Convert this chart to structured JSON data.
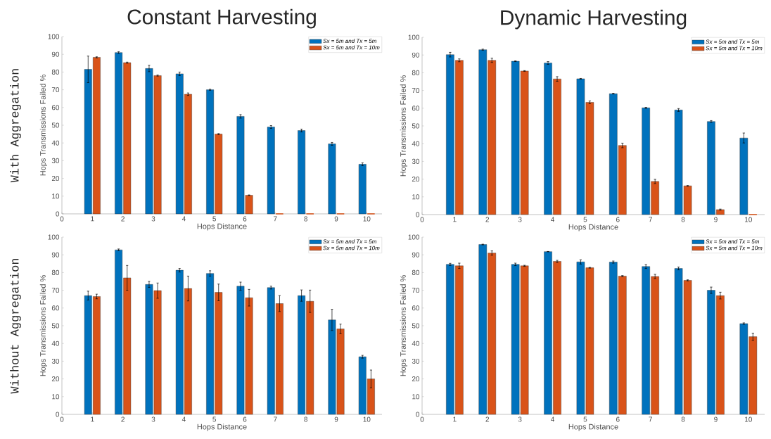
{
  "chart_data": [
    {
      "type": "bar",
      "title": "Constant Harvesting",
      "xlabel": "Hops Distance",
      "ylabel": "Hops Transmissions Failed %",
      "annotations": [
        "With Aggregation"
      ],
      "x": [
        1,
        2,
        3,
        4,
        5,
        6,
        7,
        8,
        9,
        10
      ],
      "xlim": [
        0,
        10.5
      ],
      "ylim": [
        0,
        100
      ],
      "xticks": [
        0,
        1,
        2,
        3,
        4,
        5,
        6,
        7,
        8,
        9,
        10
      ],
      "yticks": [
        0,
        10,
        20,
        30,
        40,
        50,
        60,
        70,
        80,
        90,
        100
      ],
      "legend": "top right",
      "series": [
        {
          "name": "Sx = 5m and Tx = 5m",
          "color": "#0072bd",
          "values": [
            81.5,
            91,
            82,
            79,
            70,
            55,
            49,
            47,
            39.5,
            28
          ],
          "errors": [
            7.5,
            0.5,
            1.8,
            1,
            0.3,
            1,
            0.8,
            0.8,
            0.8,
            0.8
          ]
        },
        {
          "name": "Sx = 5m and Tx = 10m",
          "color": "#d95319",
          "values": [
            88.3,
            85.3,
            78,
            67.5,
            45,
            10.5,
            0,
            0,
            0,
            0
          ],
          "errors": [
            0.3,
            0.3,
            0.3,
            0.7,
            0.3,
            0.2,
            null,
            null,
            null,
            null
          ]
        }
      ]
    },
    {
      "type": "bar",
      "title": "Dynamic Harvesting",
      "xlabel": "Hops Distance",
      "ylabel": "Hops Transmissions Failed %",
      "x": [
        1,
        2,
        3,
        4,
        5,
        6,
        7,
        8,
        9,
        10
      ],
      "xlim": [
        0,
        10.5
      ],
      "ylim": [
        0,
        100
      ],
      "xticks": [
        0,
        1,
        2,
        3,
        4,
        5,
        6,
        7,
        8,
        9,
        10
      ],
      "yticks": [
        0,
        10,
        20,
        30,
        40,
        50,
        60,
        70,
        80,
        90,
        100
      ],
      "legend": "top right",
      "series": [
        {
          "name": "Sx = 5m and Tx = 5m",
          "color": "#0072bd",
          "values": [
            90.2,
            93,
            86.5,
            85.5,
            76.6,
            68.2,
            60.2,
            59,
            52.5,
            43.2
          ],
          "errors": [
            1.3,
            0.3,
            0.2,
            0.8,
            0.2,
            0.2,
            0.3,
            0.8,
            0.5,
            2.8
          ]
        },
        {
          "name": "Sx = 5m and Tx = 10m",
          "color": "#d95319",
          "values": [
            87,
            87,
            81,
            76.5,
            63.3,
            39,
            18.7,
            16.2,
            2.8,
            0
          ],
          "errors": [
            0.8,
            1.2,
            0.2,
            1.3,
            0.8,
            1.3,
            1.2,
            0.2,
            0.3,
            null
          ]
        }
      ]
    },
    {
      "type": "bar",
      "xlabel": "Hops Distance",
      "ylabel": "Hops Transmissions Failed %",
      "annotations": [
        "Without Aggregation"
      ],
      "x": [
        1,
        2,
        3,
        4,
        5,
        6,
        7,
        8,
        9,
        10
      ],
      "xlim": [
        0,
        10.5
      ],
      "ylim": [
        0,
        100
      ],
      "xticks": [
        0,
        1,
        2,
        3,
        4,
        5,
        6,
        7,
        8,
        9,
        10
      ],
      "yticks": [
        0,
        10,
        20,
        30,
        40,
        50,
        60,
        70,
        80,
        90,
        100
      ],
      "legend": "top right",
      "series": [
        {
          "name": "Sx = 5m and Tx = 5m",
          "color": "#0072bd",
          "values": [
            67,
            92.8,
            73.3,
            81.3,
            79.5,
            72.3,
            71.5,
            67,
            53.3,
            32.5
          ],
          "errors": [
            2.5,
            0.5,
            1.7,
            1,
            1.5,
            2.3,
            0.8,
            3.2,
            6,
            0.8
          ]
        },
        {
          "name": "Sx = 5m and Tx = 10m",
          "color": "#d95319",
          "values": [
            66.5,
            77,
            69.8,
            71,
            68.8,
            65.8,
            62.5,
            63.8,
            48.2,
            20
          ],
          "errors": [
            1.3,
            7,
            4.3,
            7,
            4.7,
            4.7,
            4.5,
            6.3,
            2.7,
            5
          ]
        }
      ]
    },
    {
      "type": "bar",
      "xlabel": "Hops Distance",
      "ylabel": "Hops Transmissions Failed %",
      "x": [
        1,
        2,
        3,
        4,
        5,
        6,
        7,
        8,
        9,
        10
      ],
      "xlim": [
        0,
        10.5
      ],
      "ylim": [
        0,
        100
      ],
      "xticks": [
        0,
        1,
        2,
        3,
        4,
        5,
        6,
        7,
        8,
        9,
        10
      ],
      "yticks": [
        0,
        10,
        20,
        30,
        40,
        50,
        60,
        70,
        80,
        90,
        100
      ],
      "legend": "top right",
      "series": [
        {
          "name": "Sx = 5m and Tx = 5m",
          "color": "#0072bd",
          "values": [
            84.6,
            95.8,
            84.6,
            91.8,
            86,
            85.9,
            83.4,
            82.3,
            70,
            51.2
          ],
          "errors": [
            0.6,
            0.2,
            0.7,
            0.1,
            1.2,
            0.6,
            1.1,
            0.8,
            1.8,
            0.4
          ]
        },
        {
          "name": "Sx = 5m and Tx = 10m",
          "color": "#d95319",
          "values": [
            83.8,
            91,
            83.8,
            86.3,
            82.7,
            78,
            77.8,
            75.6,
            67,
            43.8
          ],
          "errors": [
            1.5,
            1.2,
            0.3,
            0.6,
            0.2,
            0.3,
            1.2,
            0.3,
            1.9,
            2
          ]
        }
      ]
    }
  ]
}
